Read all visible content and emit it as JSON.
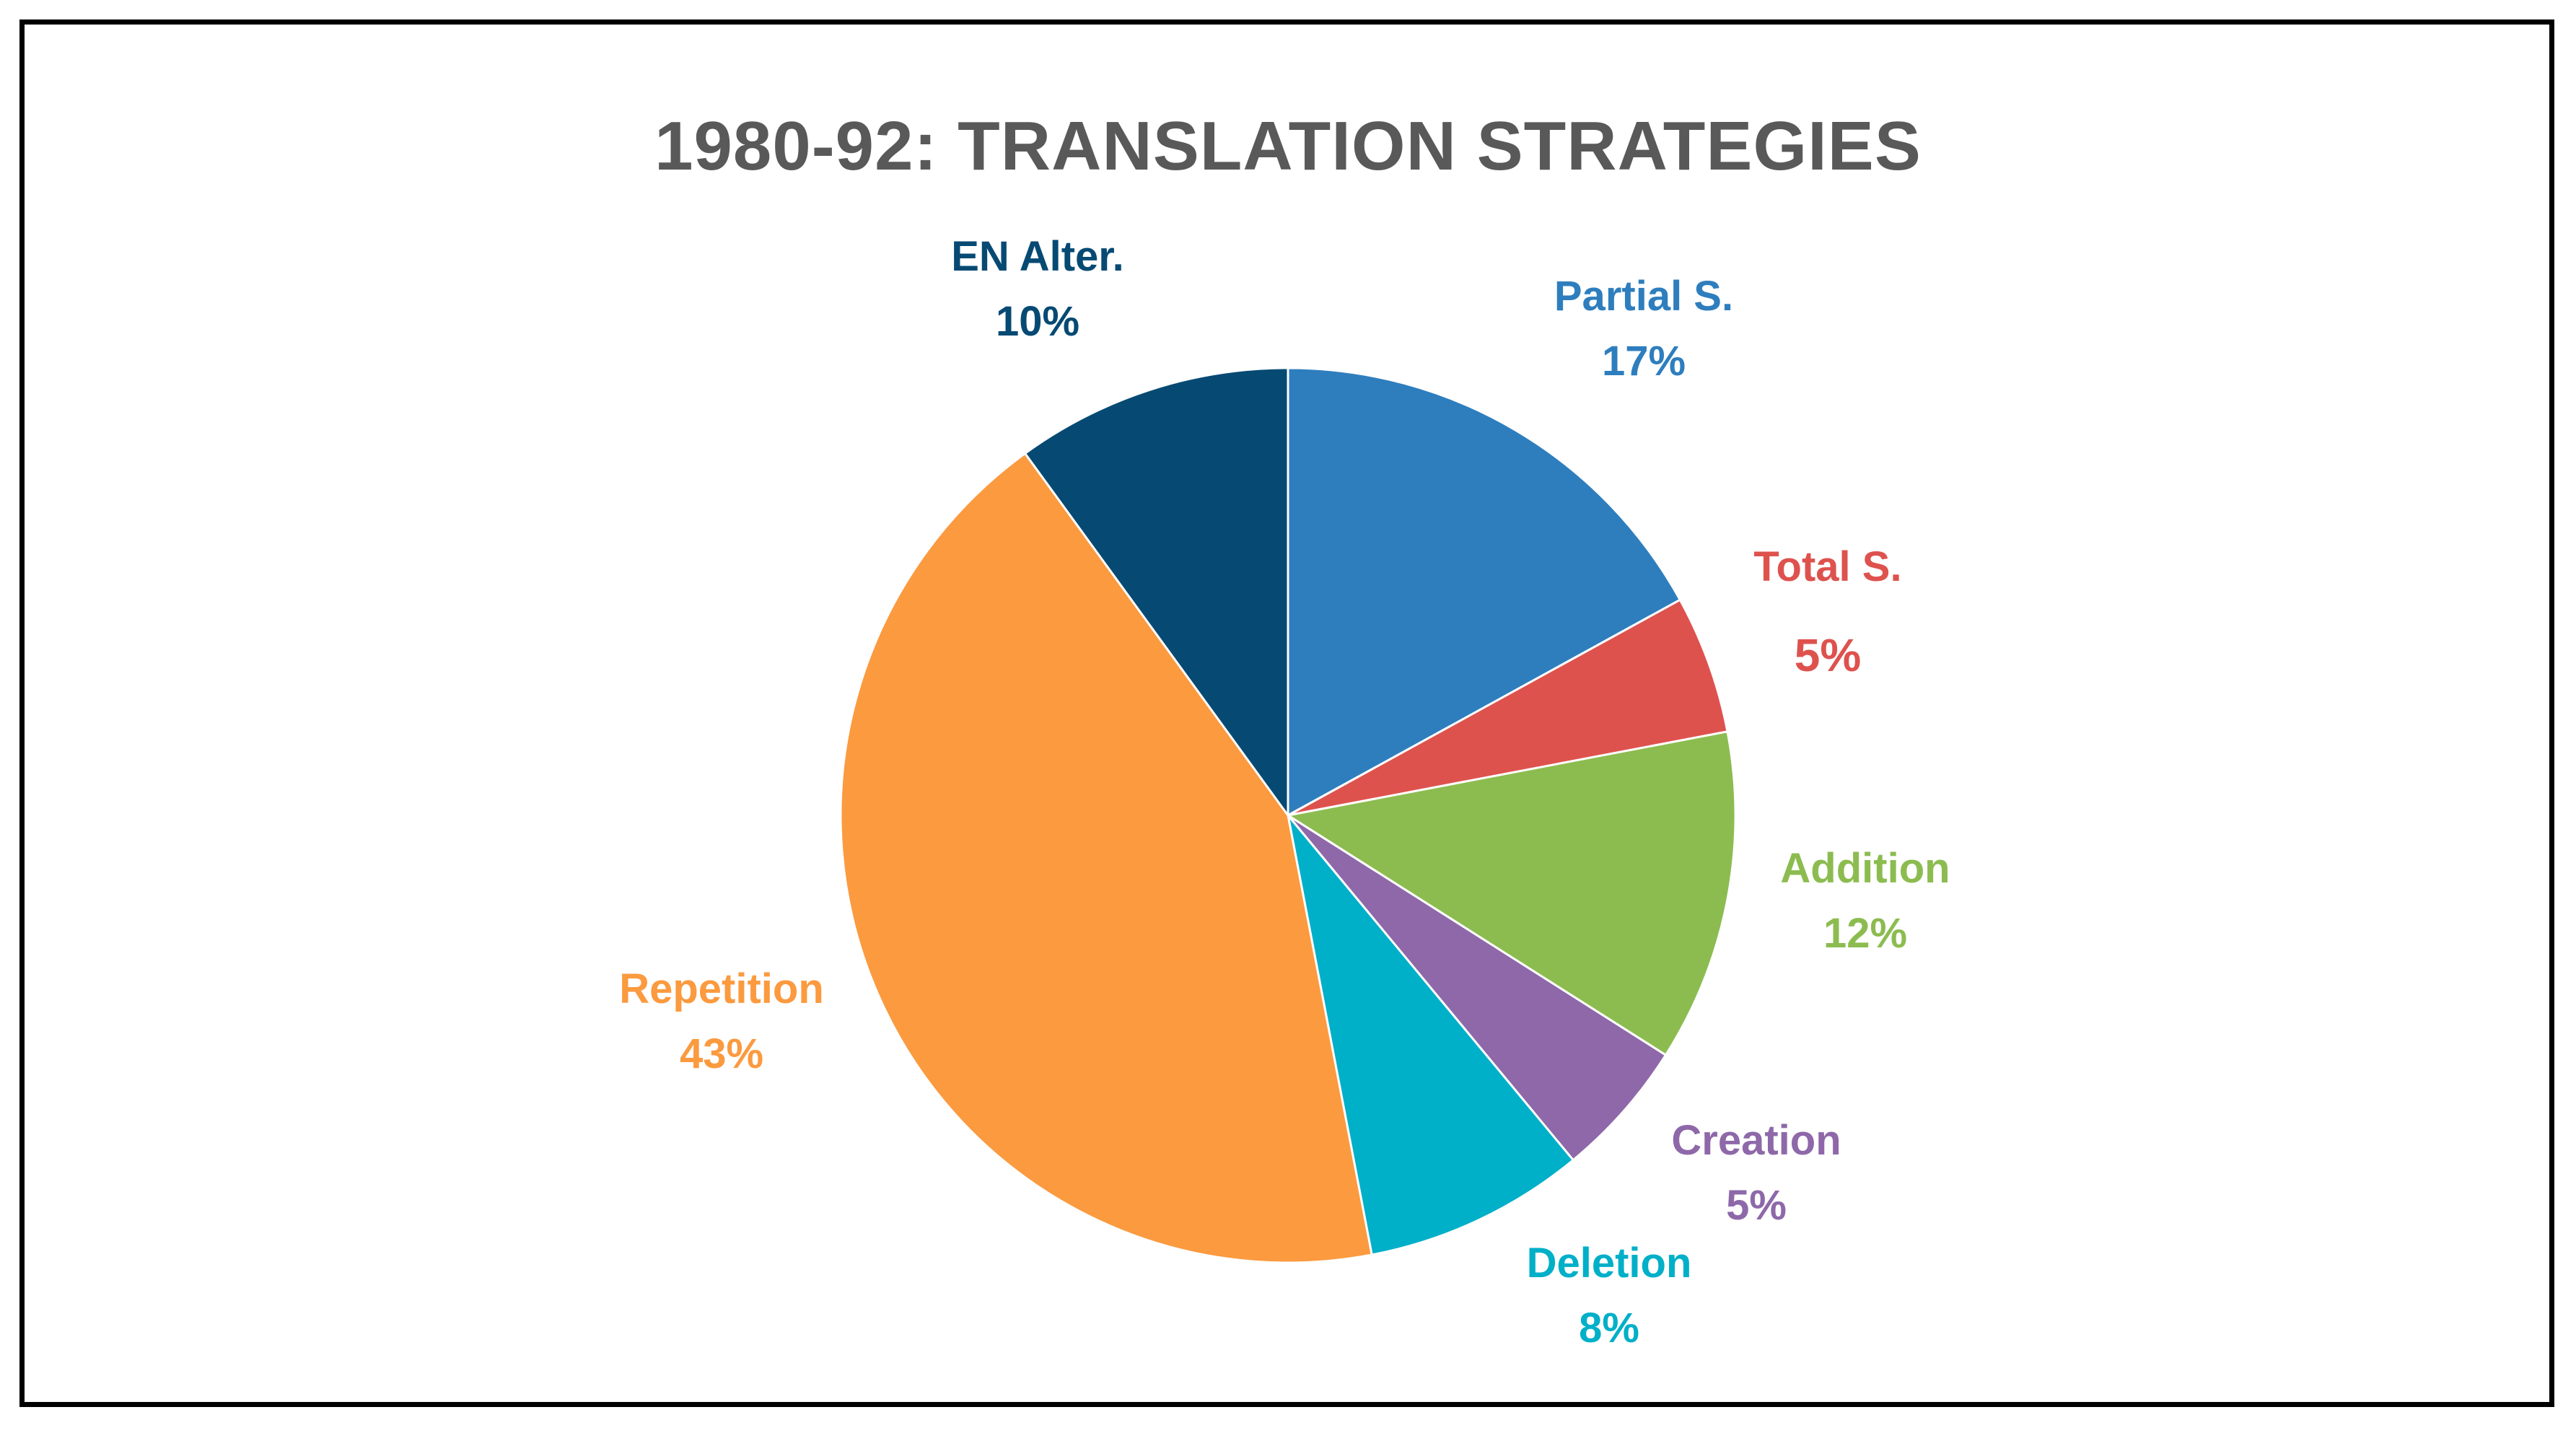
{
  "chart_data": {
    "type": "pie",
    "title": "1980-92: TRANSLATION STRATEGIES",
    "start_angle_deg": 0,
    "direction": "clockwise",
    "slices": [
      {
        "name": "Partial S.",
        "value": 17,
        "label": "17%",
        "color": "#2E7EBE"
      },
      {
        "name": "Total S.",
        "value": 5,
        "label": "5%",
        "color": "#DE524E"
      },
      {
        "name": "Addition",
        "value": 12,
        "label": "12%",
        "color": "#8CBC50"
      },
      {
        "name": "Creation",
        "value": 5,
        "label": "5%",
        "color": "#8E68A9"
      },
      {
        "name": "Deletion",
        "value": 8,
        "label": "8%",
        "color": "#00AFC8"
      },
      {
        "name": "Repetition",
        "value": 43,
        "label": "43%",
        "color": "#FB9A3F"
      },
      {
        "name": "EN Alter.",
        "value": 10,
        "label": "10%",
        "color": "#064A73"
      }
    ]
  }
}
